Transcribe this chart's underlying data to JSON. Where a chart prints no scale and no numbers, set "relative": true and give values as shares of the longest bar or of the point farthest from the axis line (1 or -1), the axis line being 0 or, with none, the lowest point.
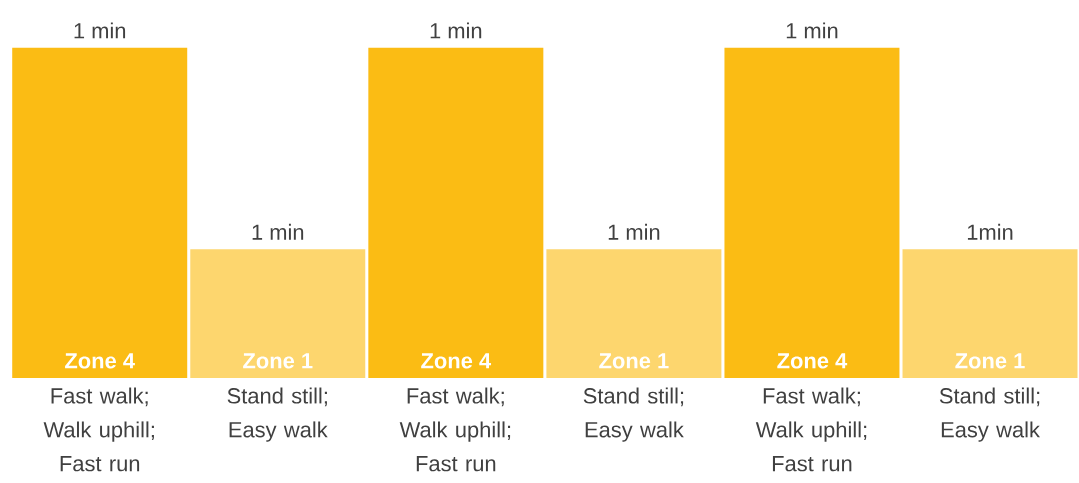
{
  "chart_data": {
    "type": "bar",
    "relative": true,
    "categories": [
      "Fast walk; Walk uphill; Fast run",
      "Stand still; Easy walk",
      "Fast walk; Walk uphill; Fast run",
      "Stand still; Easy walk",
      "Fast walk; Walk uphill; Fast run",
      "Stand still; Easy walk"
    ],
    "series": [
      {
        "name": "Zone 4",
        "color": "#fbbc14",
        "values": [
          1,
          null,
          1,
          null,
          1,
          null
        ]
      },
      {
        "name": "Zone 1",
        "color": "#fdd66e",
        "values": [
          null,
          0.39,
          null,
          0.39,
          null,
          0.39
        ]
      }
    ],
    "annotations": [
      "1 min",
      "1 min",
      "1 min",
      "1 min",
      "1 min",
      "1min"
    ]
  }
}
